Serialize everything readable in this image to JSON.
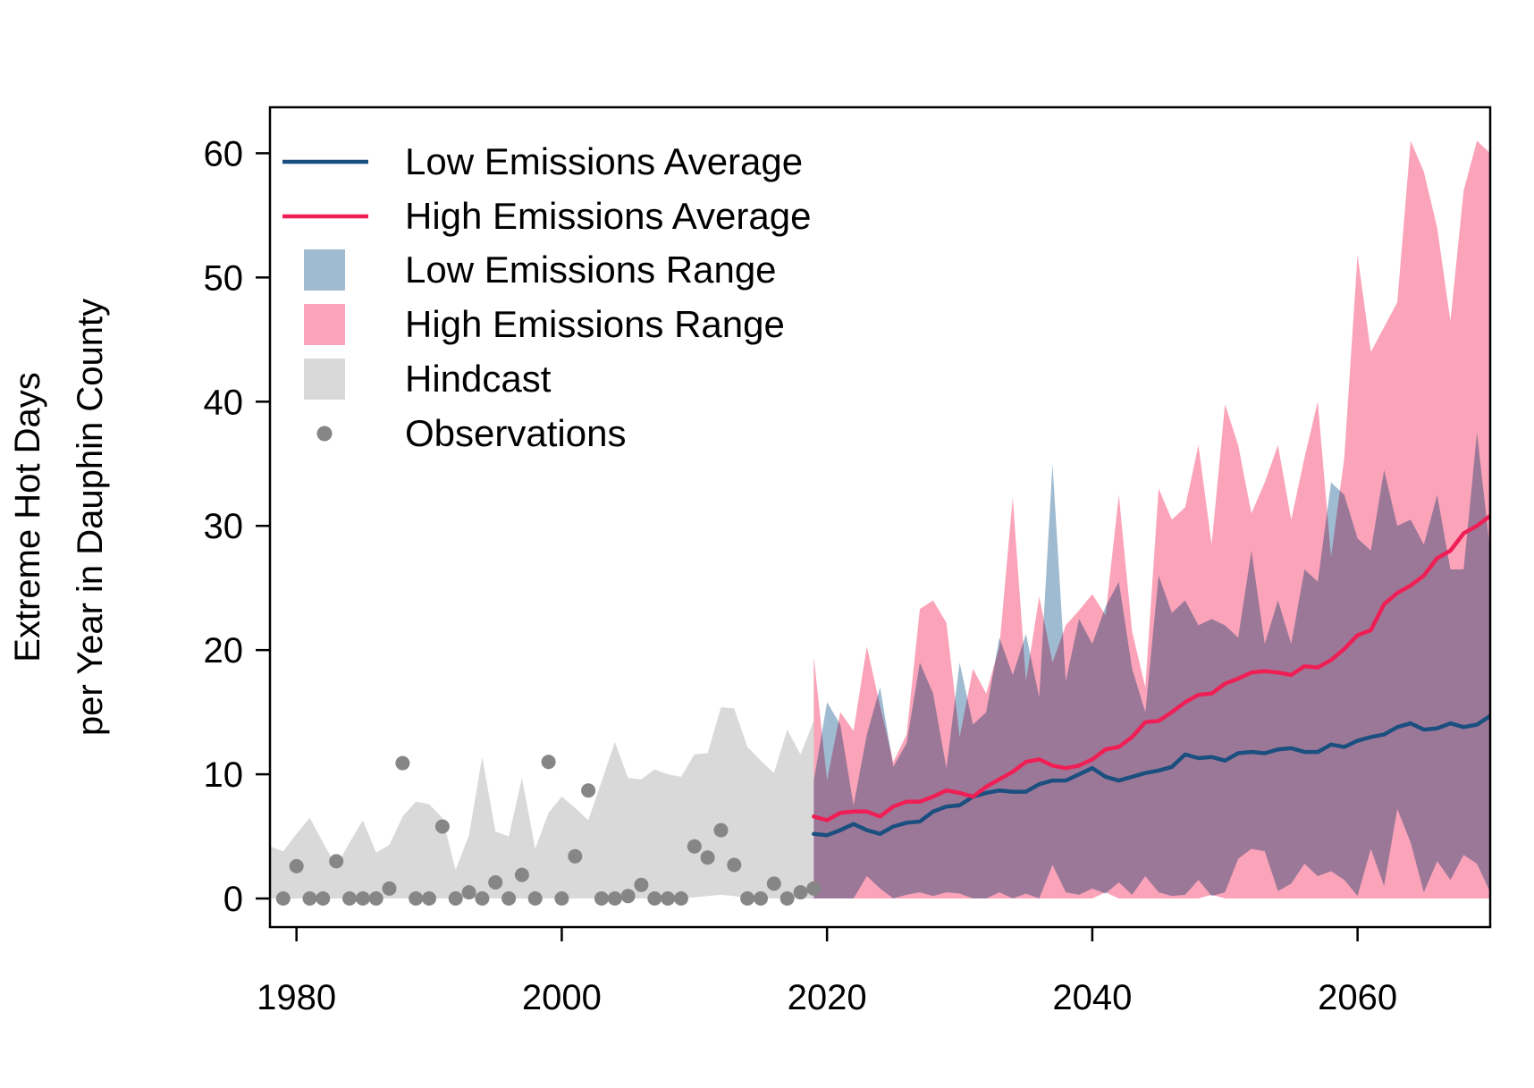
{
  "chart_data": {
    "type": "area",
    "title": "",
    "xlabel": "",
    "ylabel": [
      "Extreme Hot Days",
      "per Year in Dauphin County"
    ],
    "xlim": [
      1978,
      2070
    ],
    "ylim": [
      -2.3,
      63.7
    ],
    "x_ticks": [
      1980,
      2000,
      2020,
      2040,
      2060
    ],
    "y_ticks": [
      0,
      10,
      20,
      30,
      40,
      50,
      60
    ],
    "grid": false,
    "legend_position": "top-left",
    "legend": [
      {
        "label": "Low Emissions Average",
        "kind": "line",
        "color": "#1b4f7f"
      },
      {
        "label": "High Emissions Average",
        "kind": "line",
        "color": "#ef1e55"
      },
      {
        "label": "Low Emissions Range",
        "kind": "box",
        "color": "#9fbbd1"
      },
      {
        "label": "High Emissions Range",
        "kind": "box",
        "color": "#fba4b9"
      },
      {
        "label": "Hindcast",
        "kind": "box",
        "color": "#d9d9d9"
      },
      {
        "label": "Observations",
        "kind": "point",
        "color": "#868686"
      }
    ],
    "hindcast": {
      "name": "Hindcast",
      "color": "#d9d9d9",
      "x": [
        1978,
        1979,
        1980,
        1981,
        1982,
        1983,
        1984,
        1985,
        1986,
        1987,
        1988,
        1989,
        1990,
        1991,
        1992,
        1993,
        1994,
        1995,
        1996,
        1997,
        1998,
        1999,
        2000,
        2001,
        2002,
        2003,
        2004,
        2005,
        2006,
        2007,
        2008,
        2009,
        2010,
        2011,
        2012,
        2013,
        2014,
        2015,
        2016,
        2017,
        2018,
        2019
      ],
      "low": [
        0,
        0,
        0,
        0,
        0,
        0,
        0,
        0,
        0,
        0,
        0,
        0,
        0,
        0,
        0,
        0,
        0,
        0,
        0,
        0,
        0,
        0,
        0,
        0,
        0,
        0,
        0,
        0,
        0,
        0,
        0,
        0,
        0.1,
        0.2,
        0.3,
        0.2,
        0,
        0,
        0,
        0,
        0,
        0
      ],
      "high": [
        4.2,
        3.8,
        5.2,
        6.5,
        4.5,
        2.6,
        4.5,
        6.3,
        3.7,
        4.3,
        6.6,
        7.8,
        7.6,
        6.5,
        2.3,
        5.1,
        11.4,
        5.4,
        5.0,
        9.7,
        4.0,
        6.9,
        8.2,
        7.3,
        6.3,
        9.4,
        12.6,
        9.7,
        9.6,
        10.4,
        10.0,
        9.8,
        11.6,
        11.7,
        15.4,
        15.3,
        12.2,
        11.1,
        10.1,
        13.6,
        11.6,
        14.3
      ]
    },
    "observations": {
      "name": "Observations",
      "color": "#868686",
      "x": [
        1979,
        1980,
        1981,
        1982,
        1983,
        1984,
        1985,
        1986,
        1987,
        1988,
        1989,
        1990,
        1991,
        1992,
        1993,
        1994,
        1995,
        1996,
        1997,
        1998,
        1999,
        2000,
        2001,
        2002,
        2003,
        2004,
        2005,
        2006,
        2007,
        2008,
        2009,
        2010,
        2011,
        2012,
        2013,
        2014,
        2015,
        2016,
        2017,
        2018,
        2019
      ],
      "y": [
        0,
        2.6,
        0,
        0,
        3.0,
        0,
        0,
        0,
        0.8,
        10.9,
        0,
        0,
        5.8,
        0,
        0.5,
        0,
        1.3,
        0,
        1.9,
        0,
        11.0,
        0,
        3.4,
        8.7,
        0,
        0,
        0.2,
        1.1,
        0,
        0,
        0,
        4.2,
        3.3,
        5.5,
        2.7,
        0,
        0,
        1.2,
        0,
        0.5,
        0.8
      ]
    },
    "high_range": {
      "name": "High Emissions Range",
      "color": "#fba4b9",
      "x": [
        2019,
        2020,
        2021,
        2022,
        2023,
        2024,
        2025,
        2026,
        2027,
        2028,
        2029,
        2030,
        2031,
        2032,
        2033,
        2034,
        2035,
        2036,
        2037,
        2038,
        2039,
        2040,
        2041,
        2042,
        2043,
        2044,
        2045,
        2046,
        2047,
        2048,
        2049,
        2050,
        2051,
        2052,
        2053,
        2054,
        2055,
        2056,
        2057,
        2058,
        2059,
        2060,
        2061,
        2062,
        2063,
        2064,
        2065,
        2066,
        2067,
        2068,
        2069,
        2070
      ],
      "low": [
        0,
        0,
        0,
        0,
        0,
        0,
        0,
        0,
        0,
        0,
        0,
        0,
        0,
        0,
        0,
        0,
        0,
        0,
        0,
        0,
        0,
        0,
        0.5,
        0,
        0,
        0,
        0,
        0,
        0,
        0,
        0.3,
        0,
        0,
        0,
        0,
        0,
        0,
        0,
        0,
        0,
        0,
        0,
        0,
        0,
        0,
        0,
        0,
        0,
        0,
        0,
        0,
        0
      ],
      "high": [
        19.5,
        9.5,
        15.0,
        13.5,
        20.3,
        15.5,
        11.0,
        13.2,
        23.3,
        24.0,
        22.2,
        13.0,
        18.5,
        16.5,
        20.3,
        32.3,
        17.5,
        24.3,
        19.0,
        22.0,
        23.2,
        24.5,
        22.8,
        32.5,
        21.5,
        17.0,
        33.0,
        30.5,
        31.5,
        36.5,
        28.5,
        39.8,
        36.5,
        31.0,
        33.5,
        36.5,
        30.5,
        35.5,
        40.0,
        27.5,
        35.5,
        51.8,
        44.0,
        46.0,
        48.0,
        61.0,
        58.5,
        54.0,
        46.5,
        57.0,
        61.0,
        60.0
      ]
    },
    "low_range": {
      "name": "Low Emissions Range",
      "color": "#9fbbd1",
      "x": [
        2019,
        2020,
        2021,
        2022,
        2023,
        2024,
        2025,
        2026,
        2027,
        2028,
        2029,
        2030,
        2031,
        2032,
        2033,
        2034,
        2035,
        2036,
        2037,
        2038,
        2039,
        2040,
        2041,
        2042,
        2043,
        2044,
        2045,
        2046,
        2047,
        2048,
        2049,
        2050,
        2051,
        2052,
        2053,
        2054,
        2055,
        2056,
        2057,
        2058,
        2059,
        2060,
        2061,
        2062,
        2063,
        2064,
        2065,
        2066,
        2067,
        2068,
        2069,
        2070
      ],
      "low": [
        0,
        0,
        0,
        0,
        1.8,
        0.8,
        0,
        0.3,
        0.5,
        0.2,
        0.5,
        0.4,
        0,
        0,
        0.5,
        0,
        0.4,
        0,
        2.7,
        0.5,
        0.3,
        0.8,
        0.4,
        1.3,
        0.3,
        1.8,
        0.5,
        0.2,
        0.3,
        1.5,
        0.2,
        0.5,
        3.2,
        4.0,
        3.8,
        0.6,
        1.2,
        2.8,
        1.8,
        2.2,
        1.5,
        0.2,
        4.0,
        1.0,
        7.2,
        4.5,
        0.5,
        3.0,
        1.5,
        3.5,
        2.8,
        0.5
      ],
      "high": [
        9.5,
        15.8,
        14.0,
        7.5,
        13.2,
        17.0,
        10.6,
        12.5,
        19.0,
        16.5,
        10.5,
        19.0,
        14.0,
        15.0,
        21.0,
        18.0,
        21.3,
        16.2,
        35.0,
        17.5,
        22.5,
        20.5,
        23.5,
        25.5,
        18.5,
        15.0,
        26.0,
        23.0,
        24.0,
        22.0,
        22.5,
        22.0,
        21.0,
        28.0,
        20.5,
        24.0,
        20.5,
        26.5,
        25.5,
        33.5,
        32.5,
        29.0,
        28.0,
        34.5,
        30.0,
        30.5,
        28.5,
        32.5,
        26.5,
        26.5,
        37.5,
        28.0
      ]
    },
    "series": [
      {
        "name": "Low Emissions Average",
        "color": "#1b4f7f",
        "x": [
          2019,
          2020,
          2021,
          2022,
          2023,
          2024,
          2025,
          2026,
          2027,
          2028,
          2029,
          2030,
          2031,
          2032,
          2033,
          2034,
          2035,
          2036,
          2037,
          2038,
          2039,
          2040,
          2041,
          2042,
          2043,
          2044,
          2045,
          2046,
          2047,
          2048,
          2049,
          2050,
          2051,
          2052,
          2053,
          2054,
          2055,
          2056,
          2057,
          2058,
          2059,
          2060,
          2061,
          2062,
          2063,
          2064,
          2065,
          2066,
          2067,
          2068,
          2069,
          2070
        ],
        "values": [
          5.2,
          5.1,
          5.5,
          6.0,
          5.5,
          5.2,
          5.8,
          6.1,
          6.2,
          7.0,
          7.4,
          7.5,
          8.2,
          8.5,
          8.7,
          8.6,
          8.6,
          9.2,
          9.5,
          9.5,
          10.0,
          10.5,
          9.8,
          9.5,
          9.8,
          10.1,
          10.3,
          10.6,
          11.6,
          11.3,
          11.4,
          11.1,
          11.7,
          11.8,
          11.7,
          12.0,
          12.1,
          11.8,
          11.8,
          12.4,
          12.2,
          12.7,
          13.0,
          13.2,
          13.8,
          14.1,
          13.6,
          13.7,
          14.1,
          13.8,
          14.0,
          14.7
        ]
      },
      {
        "name": "High Emissions Average",
        "color": "#ef1e55",
        "x": [
          2019,
          2020,
          2021,
          2022,
          2023,
          2024,
          2025,
          2026,
          2027,
          2028,
          2029,
          2030,
          2031,
          2032,
          2033,
          2034,
          2035,
          2036,
          2037,
          2038,
          2039,
          2040,
          2041,
          2042,
          2043,
          2044,
          2045,
          2046,
          2047,
          2048,
          2049,
          2050,
          2051,
          2052,
          2053,
          2054,
          2055,
          2056,
          2057,
          2058,
          2059,
          2060,
          2061,
          2062,
          2063,
          2064,
          2065,
          2066,
          2067,
          2068,
          2069,
          2070
        ],
        "values": [
          6.6,
          6.3,
          6.9,
          7.0,
          7.0,
          6.6,
          7.4,
          7.8,
          7.8,
          8.2,
          8.7,
          8.5,
          8.2,
          9.0,
          9.6,
          10.2,
          11.0,
          11.2,
          10.7,
          10.5,
          10.7,
          11.2,
          12.0,
          12.2,
          13.0,
          14.2,
          14.3,
          15.0,
          15.8,
          16.4,
          16.5,
          17.3,
          17.7,
          18.2,
          18.3,
          18.2,
          18.0,
          18.7,
          18.6,
          19.2,
          20.1,
          21.2,
          21.6,
          23.7,
          24.6,
          25.2,
          26.0,
          27.4,
          28.0,
          29.4,
          30.0,
          30.8
        ]
      }
    ]
  }
}
